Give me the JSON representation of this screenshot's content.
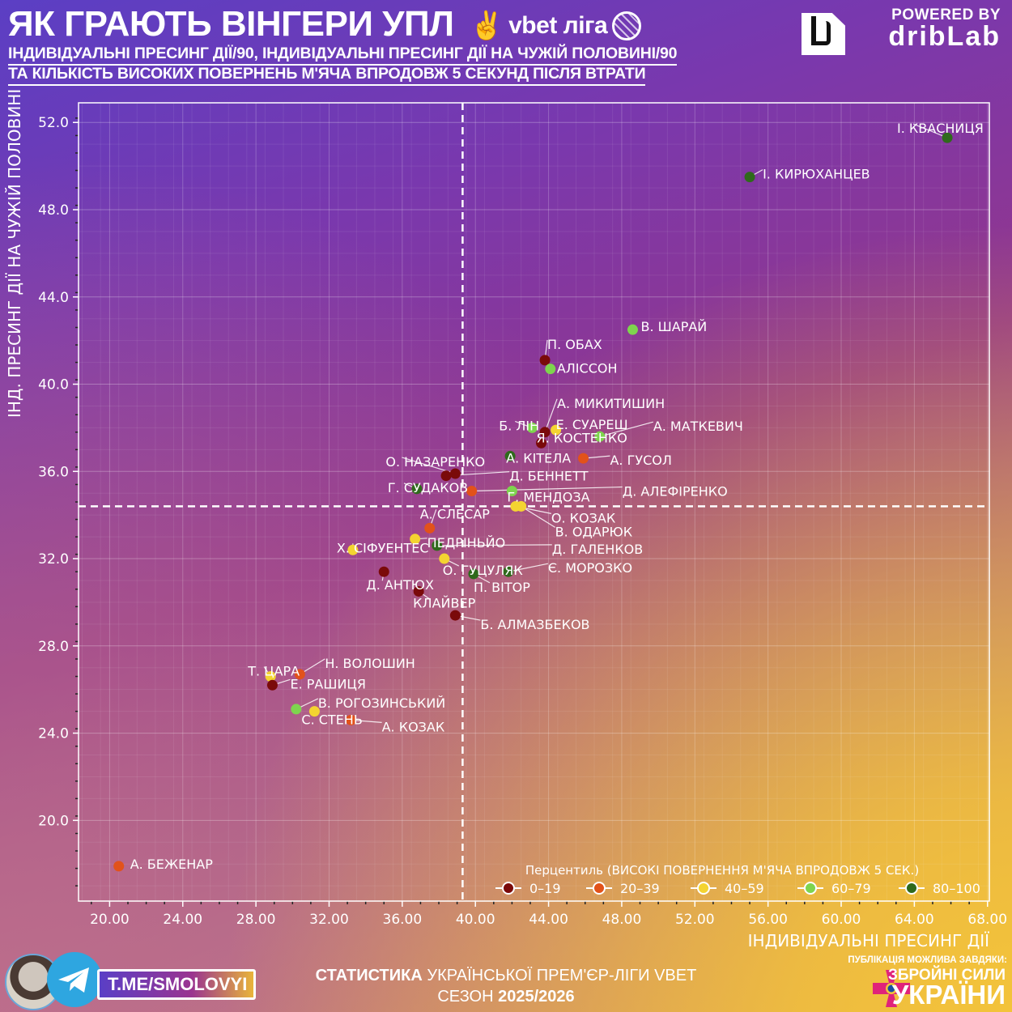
{
  "header": {
    "title": "ЯК ГРАЮТЬ ВІНГЕРИ УПЛ",
    "league_logo_text": "vbet ліга",
    "subtitle_line1": "ІНДИВІДУАЛЬНІ ПРЕСИНГ ДІЇ/90, ІНДИВІДУАЛЬНІ ПРЕСИНГ ДІЇ НА ЧУЖІЙ ПОЛОВИНІ/90",
    "subtitle_line2": "ТА КІЛЬКІСТЬ ВИСОКИХ ПОВЕРНЕНЬ М'ЯЧА ВПРОДОВЖ 5 СЕКУНД ПІСЛЯ ВТРАТИ",
    "powered_by": "POWERED BY",
    "brand": "dribLab"
  },
  "footer": {
    "stat_bold": "СТАТИСТИКА",
    "stat_rest": "УКРАЇНСЬКОЇ ПРЕМ'ЄР-ЛІГИ VBET",
    "season_label": "СЕЗОН",
    "season_value": "2025/2026",
    "handle": "T.ME/SMOLOVYI",
    "zsu_line1": "ПУБЛІКАЦІЯ МОЖЛИВА ЗАВДЯКИ:",
    "zsu_line2": "ЗБРОЙНІ СИЛИ",
    "zsu_line3": "УКРАЇНИ"
  },
  "chart_data": {
    "type": "scatter",
    "title": "ЯК ГРАЮТЬ ВІНГЕРИ УПЛ",
    "xlabel": "ІНДИВІДУАЛЬНІ ПРЕСИНГ ДІЇ",
    "ylabel": "ІНД. ПРЕСИНГ ДІЇ НА ЧУЖІЙ ПОЛОВИНІ",
    "xlim": [
      18.3,
      68.1
    ],
    "ylim": [
      16.3,
      52.9
    ],
    "xticks": [
      20,
      24,
      28,
      32,
      36,
      40,
      44,
      48,
      52,
      56,
      60,
      64,
      68
    ],
    "xtick_labels": [
      "20.00",
      "24.00",
      "28.00",
      "32.00",
      "36.00",
      "40.00",
      "44.00",
      "48.00",
      "52.00",
      "56.00",
      "60.00",
      "64.00",
      "68.00"
    ],
    "yticks": [
      20,
      24,
      28,
      32,
      36,
      40,
      44,
      48,
      52
    ],
    "ytick_labels": [
      "20.0",
      "24.0",
      "28.0",
      "32.0",
      "36.0",
      "40.0",
      "44.0",
      "48.0",
      "52.0"
    ],
    "grid": true,
    "mean_lines": {
      "x": 39.3,
      "y": 34.4
    },
    "legend": {
      "title": "Перцентиль (ВИСОКІ ПОВЕРНЕННЯ М'ЯЧА ВПРОДОВЖ 5 СЕК.)",
      "placement": "bottom-right",
      "entries": [
        {
          "label": "0–19",
          "color": "#7a0a0a"
        },
        {
          "label": "20–39",
          "color": "#e2521a"
        },
        {
          "label": "40–59",
          "color": "#f4d431"
        },
        {
          "label": "60–79",
          "color": "#7ed44e"
        },
        {
          "label": "80–100",
          "color": "#2f6a1c"
        }
      ]
    },
    "points": [
      {
        "name": "І. КВАСНИЦЯ",
        "x": 65.8,
        "y": 51.3,
        "bucket": 4
      },
      {
        "name": "І. КИРЮХАНЦЕВ",
        "x": 55.0,
        "y": 49.5,
        "bucket": 4
      },
      {
        "name": "В. ШАРАЙ",
        "x": 48.6,
        "y": 42.5,
        "bucket": 3
      },
      {
        "name": "П. ОБАХ",
        "x": 43.8,
        "y": 41.1,
        "bucket": 0
      },
      {
        "name": "АЛІССОН",
        "x": 44.1,
        "y": 40.7,
        "bucket": 3
      },
      {
        "name": "Б. ЛІН",
        "x": 43.1,
        "y": 38.0,
        "bucket": 3
      },
      {
        "name": "А. МИКИТИШИН",
        "x": 43.8,
        "y": 37.8,
        "bucket": 0
      },
      {
        "name": "Е. СУАРЕШ",
        "x": 44.4,
        "y": 37.9,
        "bucket": 2
      },
      {
        "name": "А. МАТКЕВИЧ",
        "x": 46.8,
        "y": 37.6,
        "bucket": 3
      },
      {
        "name": "Я. КОСТЕНКО",
        "x": 43.6,
        "y": 37.3,
        "bucket": 0
      },
      {
        "name": "А. КІТЕЛА",
        "x": 41.9,
        "y": 36.7,
        "bucket": 4
      },
      {
        "name": "А. ГУСОЛ",
        "x": 45.9,
        "y": 36.6,
        "bucket": 1
      },
      {
        "name": "О. НАЗАРЕНКО",
        "x": 38.9,
        "y": 35.9,
        "bucket": 0
      },
      {
        "name": "Д. БЕННЕТТ",
        "x": 38.4,
        "y": 35.8,
        "bucket": 0
      },
      {
        "name": "Г. СУДАКОВ",
        "x": 36.8,
        "y": 35.2,
        "bucket": 4
      },
      {
        "name": "Д. АЛЕФІРЕНКО",
        "x": 39.8,
        "y": 35.1,
        "bucket": 1
      },
      {
        "name": "Г. МЕНДОЗА",
        "x": 42.0,
        "y": 35.1,
        "bucket": 3
      },
      {
        "name": "О. КОЗАК",
        "x": 42.2,
        "y": 34.4,
        "bucket": 2
      },
      {
        "name": "В. ОДАРЮК",
        "x": 42.5,
        "y": 34.4,
        "bucket": 2
      },
      {
        "name": "А. СЛЕСАР",
        "x": 37.5,
        "y": 33.4,
        "bucket": 1
      },
      {
        "name": "ПЕДРІНЬЙО",
        "x": 36.7,
        "y": 32.9,
        "bucket": 2
      },
      {
        "name": "Д. ГАЛЕНКОВ",
        "x": 37.9,
        "y": 32.6,
        "bucket": 4
      },
      {
        "name": "Х. СІФУЕНТЕС",
        "x": 33.3,
        "y": 32.4,
        "bucket": 2
      },
      {
        "name": "О. ГУЦУЛЯК",
        "x": 38.3,
        "y": 32.0,
        "bucket": 2
      },
      {
        "name": "Д. АНТЮХ",
        "x": 35.0,
        "y": 31.4,
        "bucket": 0
      },
      {
        "name": "П. ВІТОР",
        "x": 39.9,
        "y": 31.3,
        "bucket": 4
      },
      {
        "name": "Є. МОРОЗКО",
        "x": 41.8,
        "y": 31.4,
        "bucket": 4
      },
      {
        "name": "КЛАЙВЕР",
        "x": 36.9,
        "y": 30.5,
        "bucket": 0
      },
      {
        "name": "Б. АЛМАЗБЕКОВ",
        "x": 38.9,
        "y": 29.4,
        "bucket": 0
      },
      {
        "name": "Т. ЦАРА",
        "x": 28.8,
        "y": 26.6,
        "bucket": 2
      },
      {
        "name": "Н. ВОЛОШИН",
        "x": 30.4,
        "y": 26.7,
        "bucket": 1
      },
      {
        "name": "Е. РАШИЦЯ",
        "x": 28.9,
        "y": 26.2,
        "bucket": 0
      },
      {
        "name": "В. РОГОЗИНСЬКИЙ",
        "x": 30.2,
        "y": 25.1,
        "bucket": 3
      },
      {
        "name": "С. СТЕНЬ",
        "x": 31.2,
        "y": 25.0,
        "bucket": 2
      },
      {
        "name": "А. КОЗАК",
        "x": 33.2,
        "y": 24.6,
        "bucket": 1
      },
      {
        "name": "А. БЕЖЕНАР",
        "x": 20.5,
        "y": 17.9,
        "bucket": 1
      }
    ]
  }
}
